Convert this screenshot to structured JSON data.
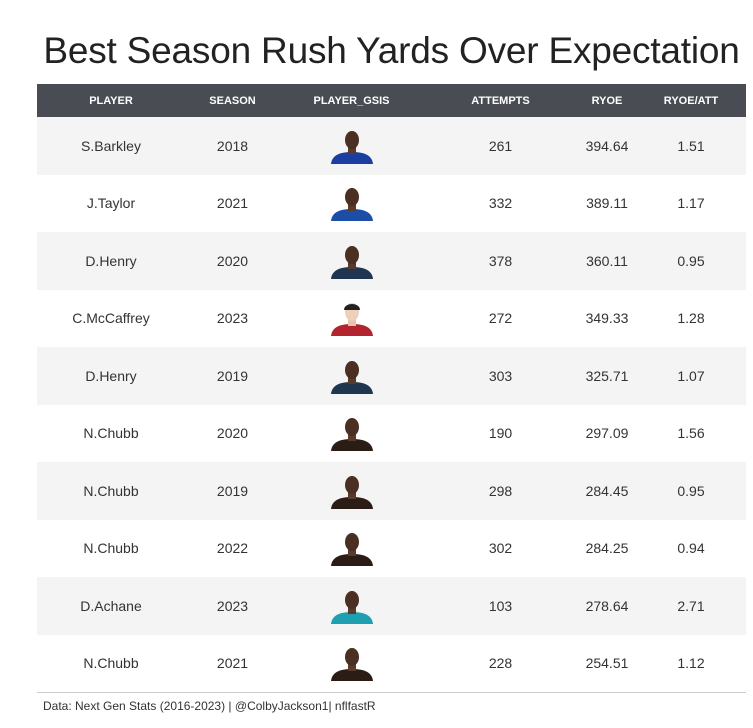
{
  "title": "Best Season Rush Yards Over Expectation",
  "columns": [
    "PLAYER",
    "SEASON",
    "PLAYER_GSIS",
    "ATTEMPTS",
    "RYOE",
    "RYOE/ATT"
  ],
  "colors": {
    "header_bg": "#4a4c54",
    "row_alt_bg": "#f4f4f4",
    "team": {
      "giants": "#1b3fa0",
      "colts": "#1c4ea8",
      "titans": "#1f3550",
      "49ers": "#b3252e",
      "browns": "#2b1d16",
      "dolphins": "#1ea0b0"
    }
  },
  "chart_data": {
    "type": "table",
    "title": "Best Season Rush Yards Over Expectation",
    "columns": [
      "PLAYER",
      "SEASON",
      "PLAYER_GSIS",
      "ATTEMPTS",
      "RYOE",
      "RYOE/ATT"
    ],
    "rows": [
      {
        "player": "S.Barkley",
        "season": "2018",
        "headshot": "headshot-icon",
        "team": "giants",
        "attempts": "261",
        "ryoe": "394.64",
        "ryoe_att": "1.51"
      },
      {
        "player": "J.Taylor",
        "season": "2021",
        "headshot": "headshot-icon",
        "team": "colts",
        "attempts": "332",
        "ryoe": "389.11",
        "ryoe_att": "1.17"
      },
      {
        "player": "D.Henry",
        "season": "2020",
        "headshot": "headshot-icon",
        "team": "titans",
        "attempts": "378",
        "ryoe": "360.11",
        "ryoe_att": "0.95"
      },
      {
        "player": "C.McCaffrey",
        "season": "2023",
        "headshot": "headshot-icon",
        "team": "49ers",
        "attempts": "272",
        "ryoe": "349.33",
        "ryoe_att": "1.28"
      },
      {
        "player": "D.Henry",
        "season": "2019",
        "headshot": "headshot-icon",
        "team": "titans",
        "attempts": "303",
        "ryoe": "325.71",
        "ryoe_att": "1.07"
      },
      {
        "player": "N.Chubb",
        "season": "2020",
        "headshot": "headshot-icon",
        "team": "browns",
        "attempts": "190",
        "ryoe": "297.09",
        "ryoe_att": "1.56"
      },
      {
        "player": "N.Chubb",
        "season": "2019",
        "headshot": "headshot-icon",
        "team": "browns",
        "attempts": "298",
        "ryoe": "284.45",
        "ryoe_att": "0.95"
      },
      {
        "player": "N.Chubb",
        "season": "2022",
        "headshot": "headshot-icon",
        "team": "browns",
        "attempts": "302",
        "ryoe": "284.25",
        "ryoe_att": "0.94"
      },
      {
        "player": "D.Achane",
        "season": "2023",
        "headshot": "headshot-icon",
        "team": "dolphins",
        "attempts": "103",
        "ryoe": "278.64",
        "ryoe_att": "2.71"
      },
      {
        "player": "N.Chubb",
        "season": "2021",
        "headshot": "headshot-icon",
        "team": "browns",
        "attempts": "228",
        "ryoe": "254.51",
        "ryoe_att": "1.12"
      }
    ]
  },
  "source": "Data: Next Gen Stats (2016-2023) | @ColbyJackson1| nflfastR"
}
